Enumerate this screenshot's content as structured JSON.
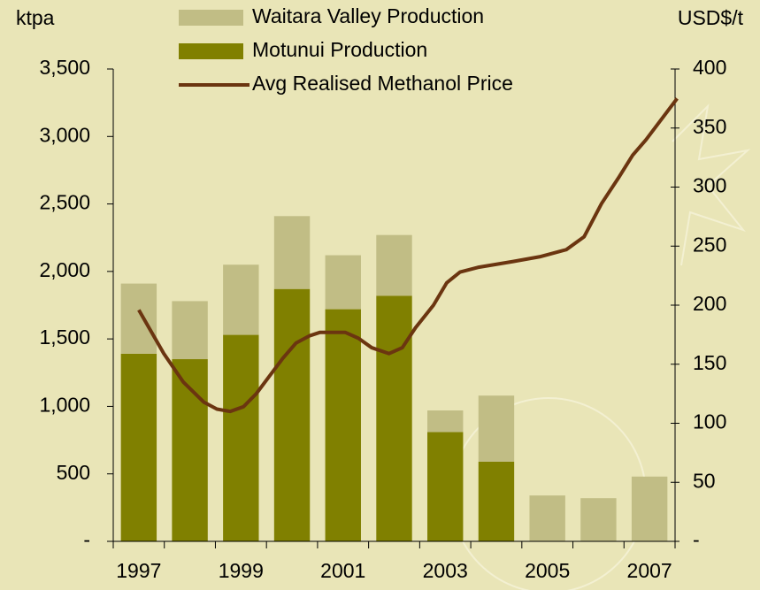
{
  "chart_data": {
    "type": "bar-line",
    "y_label": "ktpa",
    "y2_label": "USD$/t",
    "categories": [
      "1997",
      null,
      "1999",
      null,
      "2001",
      null,
      "2003",
      null,
      "2005",
      null,
      "2007"
    ],
    "xlim": [
      1996.5,
      2007.5
    ],
    "series": [
      {
        "name": "Waitara Valley Production",
        "type": "bar",
        "color": "#c1bd85",
        "values": [
          520,
          430,
          520,
          540,
          400,
          450,
          160,
          490,
          340,
          320,
          480
        ]
      },
      {
        "name": "Motunui Production",
        "type": "bar",
        "color": "#808000",
        "values": [
          1390,
          1350,
          1530,
          1870,
          1720,
          1820,
          810,
          590,
          0,
          0,
          0
        ]
      },
      {
        "name": "Avg Realised Methanol Price",
        "type": "line",
        "axis": "y2",
        "color": "#6b3510",
        "x": [
          1997.0,
          1997.49,
          1997.87,
          1998.27,
          1998.53,
          1998.79,
          1999.05,
          1999.3,
          1999.56,
          1999.82,
          2000.08,
          2000.34,
          2000.55,
          2001.04,
          2001.3,
          2001.56,
          2001.9,
          2002.16,
          2002.42,
          2002.77,
          2003.03,
          2003.29,
          2003.64,
          2004.33,
          2004.85,
          2005.37,
          2005.72,
          2006.06,
          2006.41,
          2006.67,
          2006.93,
          2007.54
        ],
        "values": [
          196,
          159,
          135,
          118,
          112,
          110,
          114,
          125,
          140,
          155,
          168,
          174,
          177,
          177,
          172,
          164,
          159,
          164,
          181,
          200,
          219,
          228,
          232,
          237,
          241,
          247,
          258,
          286,
          309,
          327,
          340,
          375
        ]
      }
    ],
    "ylim": [
      0,
      3500
    ],
    "yticks": [
      {
        "value": 0,
        "label": "-"
      },
      500,
      {
        "value": 1000,
        "label": "1,000"
      },
      {
        "value": 1500,
        "label": "1,500"
      },
      {
        "value": 2000,
        "label": "2,000"
      },
      {
        "value": 2500,
        "label": "2,500"
      },
      {
        "value": 3000,
        "label": "3,000"
      },
      {
        "value": 3500,
        "label": "3,500"
      }
    ],
    "y2lim": [
      0,
      400
    ],
    "y2ticks": [
      {
        "value": 0,
        "label": "-"
      },
      50,
      100,
      150,
      200,
      250,
      300,
      350,
      400
    ],
    "grid": false
  }
}
